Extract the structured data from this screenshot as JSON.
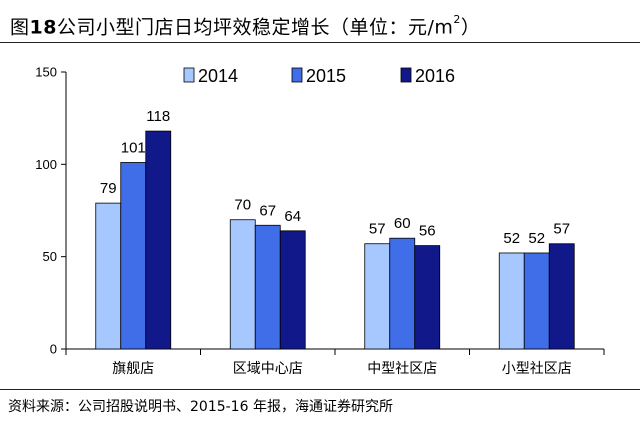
{
  "title": {
    "prefix": "图",
    "number": "18",
    "text": "公司小型门店日均坪效稳定增长（单位：元/m",
    "superscript": "2",
    "suffix": "）"
  },
  "source": "资料来源：公司招股说明书、2015-16 年报，海通证券研究所",
  "chart_data": {
    "type": "bar",
    "categories": [
      "旗舰店",
      "区域中心店",
      "中型社区店",
      "小型社区店"
    ],
    "series": [
      {
        "name": "2014",
        "values": [
          79,
          70,
          57,
          52
        ],
        "color": "#a6c8ff"
      },
      {
        "name": "2015",
        "values": [
          101,
          67,
          60,
          52
        ],
        "color": "#3f6ee8"
      },
      {
        "name": "2016",
        "values": [
          118,
          64,
          56,
          57
        ],
        "color": "#10188a"
      }
    ],
    "yticks": [
      0,
      50,
      100,
      150
    ],
    "ylim": [
      0,
      150
    ],
    "legend_position": "top-center",
    "grid": false,
    "xlabel": "",
    "ylabel": ""
  }
}
